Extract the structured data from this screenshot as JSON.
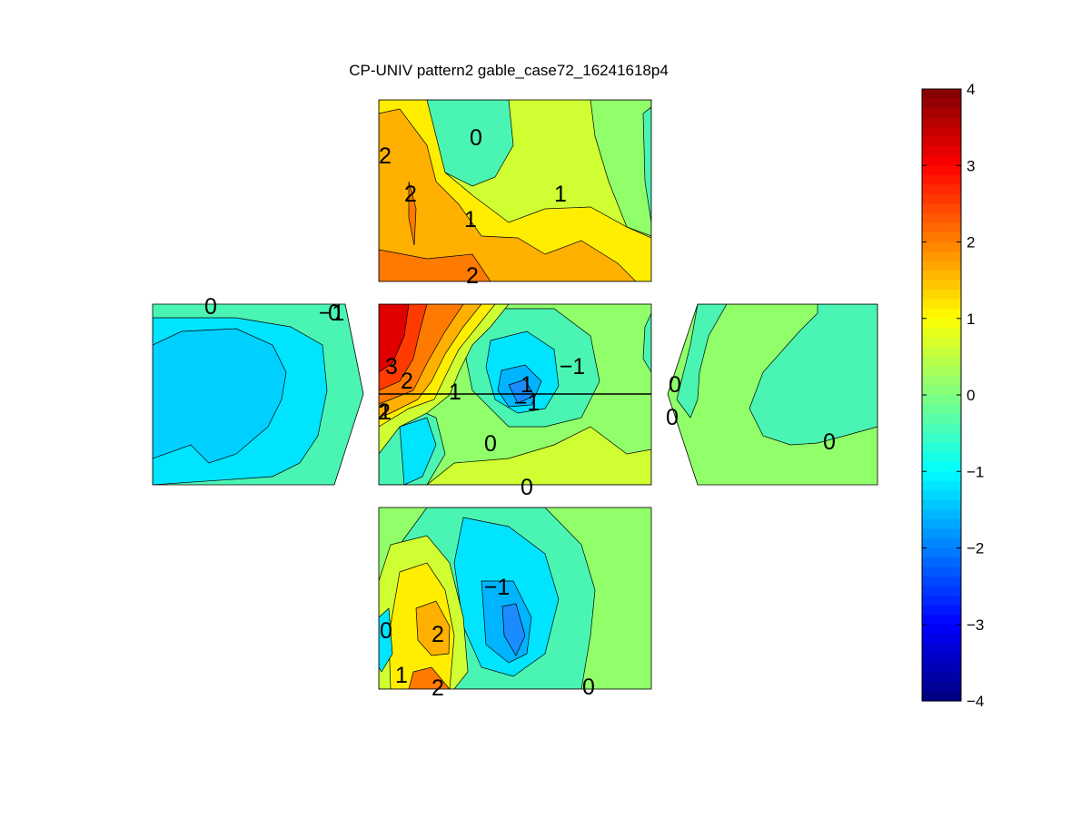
{
  "chart_data": {
    "type": "heatmap",
    "title": "CP-UNIV pattern2 gable_case72_16241618p4",
    "colorbar": {
      "min": -4,
      "max": 4,
      "ticks": [
        "4",
        "3",
        "2",
        "1",
        "0",
        "−1",
        "−2",
        "−3",
        "−4"
      ],
      "colormap": "jet"
    },
    "panels": [
      {
        "name": "top",
        "contour_labels": [
          "0",
          "2",
          "2",
          "1",
          "1",
          "2"
        ]
      },
      {
        "name": "left",
        "contour_labels": [
          "0",
          "−1",
          "0"
        ]
      },
      {
        "name": "center",
        "contour_labels": [
          "3",
          "2",
          "2",
          "1",
          "1",
          "−1",
          "−1",
          "0",
          "0",
          "1"
        ]
      },
      {
        "name": "right",
        "contour_labels": [
          "0",
          "0",
          "0"
        ]
      },
      {
        "name": "bottom",
        "contour_labels": [
          "−1",
          "0",
          "2",
          "1",
          "2",
          "0"
        ]
      }
    ]
  },
  "colors": {
    "level_n3": "#0050ff",
    "level_n2": "#1a8cff",
    "level_n1": "#00b4ff",
    "level_n05": "#00e4ff",
    "level_0": "#4af5b4",
    "level_05": "#90ff6a",
    "level_1": "#cfff32",
    "level_15": "#ffee00",
    "level_2": "#ffb000",
    "level_25": "#ff7a00",
    "level_3": "#ff3a00",
    "level_35": "#e00000"
  }
}
